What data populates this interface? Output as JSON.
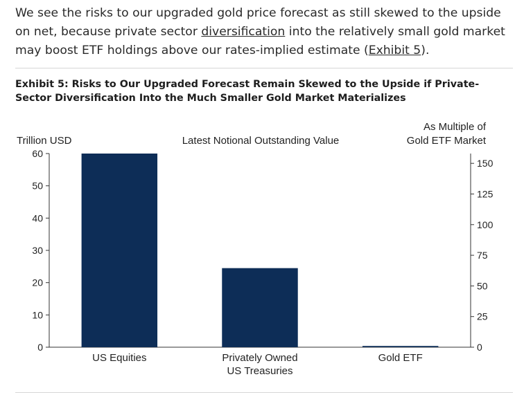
{
  "intro": {
    "text_before_link1": "We see the risks to our upgraded gold price forecast as still skewed to the upside on net, because private sector ",
    "link1": "diversification",
    "text_between": " into the relatively small gold market may boost ETF holdings above our rates-implied estimate (",
    "link2": "Exhibit 5",
    "text_after": ")."
  },
  "exhibit_title": "Exhibit 5: Risks to Our Upgraded Forecast Remain Skewed to the Upside if Private-Sector Diversification Into the Much Smaller Gold Market Materializes",
  "chart_data": {
    "type": "bar",
    "title": "Latest Notional Outstanding Value",
    "ylabel": "Trillion USD",
    "y2label_line1": "As Multiple of",
    "y2label_line2": "Gold ETF Market",
    "categories": [
      [
        "US Equities"
      ],
      [
        "Privately Owned",
        "US Treasuries"
      ],
      [
        "Gold ETF"
      ]
    ],
    "values": [
      60,
      24.5,
      0.38
    ],
    "ylim": [
      0,
      60
    ],
    "yticks": [
      "0",
      "10",
      "20",
      "30",
      "40",
      "50",
      "60"
    ],
    "y2lim": [
      0,
      158
    ],
    "y2ticks": [
      "0",
      "25",
      "50",
      "75",
      "100",
      "125",
      "150"
    ],
    "bar_color": "#0d2d57",
    "grid": false
  }
}
